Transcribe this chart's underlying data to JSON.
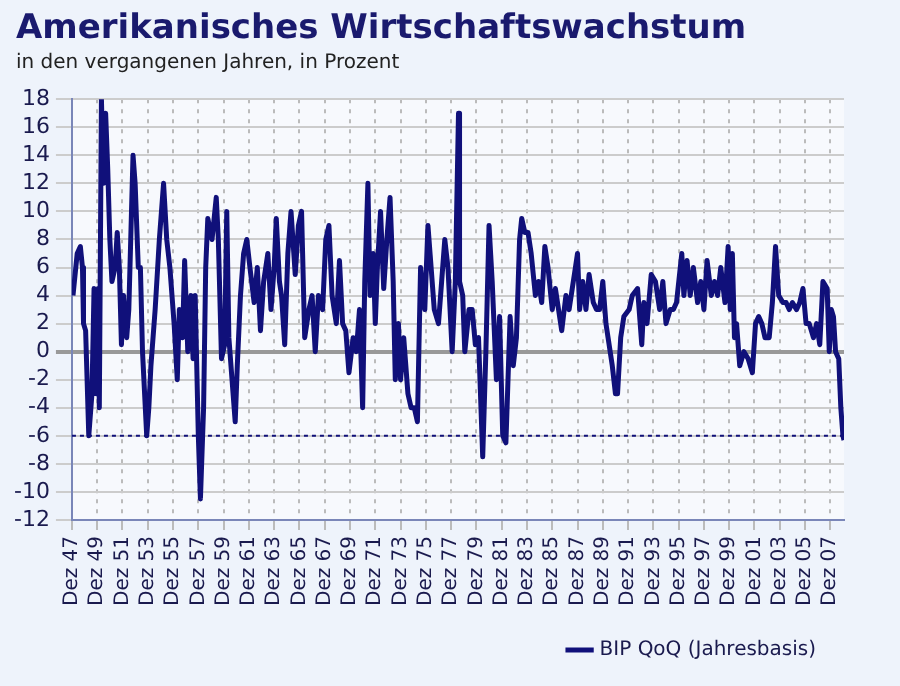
{
  "chart_data": {
    "type": "line",
    "title": "Amerikanisches Wirtschaftswachstum",
    "subtitle": "in den vergangenen Jahren, in Prozent",
    "x": [
      "1948-01",
      "1948-05",
      "1948-08",
      "1948-10",
      "1948-11",
      "1949-01",
      "1949-02",
      "1949-04",
      "1949-07",
      "1949-09",
      "1949-11",
      "1950-01",
      "1950-02",
      "1950-04",
      "1950-06",
      "1950-08",
      "1950-10",
      "1950-12",
      "1951-02",
      "1951-05",
      "1951-07",
      "1951-09",
      "1951-11",
      "1952-01",
      "1952-04",
      "1952-06",
      "1952-10",
      "1952-12",
      "1953-03",
      "1953-05",
      "1953-07",
      "1953-11",
      "1954-01",
      "1954-03",
      "1954-07",
      "1954-11",
      "1955-03",
      "1955-06",
      "1955-09",
      "1956-01",
      "1956-04",
      "1956-06",
      "1956-09",
      "1956-11",
      "1957-02",
      "1957-05",
      "1957-07",
      "1957-09",
      "1957-12",
      "1958-02",
      "1958-05",
      "1958-07",
      "1958-09",
      "1959-01",
      "1959-03",
      "1959-05",
      "1959-07",
      "1959-10",
      "1960-01",
      "1960-03",
      "1960-05",
      "1960-08",
      "1960-11",
      "1961-01",
      "1961-04",
      "1961-07",
      "1961-10",
      "1962-01",
      "1962-05",
      "1962-08",
      "1962-11",
      "1963-02",
      "1963-06",
      "1963-09",
      "1963-12",
      "1964-02",
      "1964-05",
      "1964-07",
      "1964-10",
      "1965-01",
      "1965-04",
      "1965-08",
      "1965-11",
      "1966-02",
      "1966-05",
      "1966-09",
      "1966-12",
      "1967-03",
      "1967-06",
      "1967-10",
      "1968-01",
      "1968-04",
      "1968-07",
      "1968-11",
      "1969-02",
      "1969-05",
      "1969-08",
      "1969-11",
      "1970-03",
      "1970-06",
      "1970-09",
      "1970-12",
      "1971-02",
      "1971-05",
      "1971-07",
      "1971-10",
      "1971-12",
      "1972-02",
      "1972-05",
      "1972-08",
      "1972-11",
      "1973-02",
      "1973-05",
      "1973-07",
      "1973-10",
      "1973-12",
      "1974-03",
      "1974-07",
      "1974-10",
      "1975-01",
      "1975-04",
      "1975-07",
      "1975-11",
      "1976-02",
      "1976-05",
      "1976-08",
      "1976-12",
      "1977-03",
      "1977-06",
      "1977-09",
      "1978-01",
      "1978-04",
      "1978-07",
      "1978-08",
      "1978-11",
      "1979-01",
      "1979-05",
      "1979-08",
      "1979-11",
      "1980-02",
      "1980-06",
      "1980-09",
      "1980-12",
      "1981-03",
      "1981-07",
      "1981-10",
      "1982-01",
      "1982-04",
      "1982-08",
      "1982-11",
      "1983-02",
      "1983-05",
      "1983-07",
      "1983-10",
      "1984-01",
      "1984-04",
      "1984-08",
      "1984-11",
      "1985-02",
      "1985-05",
      "1985-08",
      "1985-12",
      "1986-03",
      "1986-06",
      "1986-09",
      "1987-01",
      "1987-04",
      "1987-07",
      "1987-10",
      "1987-12",
      "1988-02",
      "1988-05",
      "1988-08",
      "1988-11",
      "1989-03",
      "1989-06",
      "1989-09",
      "1989-12",
      "1990-03",
      "1990-05",
      "1990-09",
      "1990-12",
      "1991-02",
      "1991-05",
      "1991-08",
      "1992-01",
      "1992-04",
      "1992-09",
      "1993-01",
      "1993-03",
      "1993-06",
      "1993-10",
      "1994-02",
      "1994-06",
      "1994-09",
      "1994-12",
      "1995-04",
      "1995-07",
      "1995-10",
      "1996-03",
      "1996-05",
      "1996-08",
      "1996-11",
      "1997-02",
      "1997-06",
      "1997-09",
      "1997-12",
      "1998-03",
      "1998-07",
      "1998-10",
      "1999-01",
      "1999-04",
      "1999-08",
      "1999-11",
      "2000-01",
      "2000-03",
      "2000-05",
      "2000-07",
      "2000-10",
      "2001-02",
      "2001-06",
      "2001-10",
      "2002-01",
      "2002-04",
      "2002-07",
      "2002-10",
      "2003-02",
      "2003-05",
      "2003-08",
      "2003-11",
      "2004-03",
      "2004-06",
      "2004-09",
      "2004-12",
      "2005-04",
      "2005-07",
      "2005-10",
      "2006-01",
      "2006-04",
      "2006-08",
      "2006-11",
      "2007-02",
      "2007-05",
      "2007-09",
      "2007-11",
      "2008-01",
      "2008-03",
      "2008-05",
      "2008-08",
      "2008-10",
      "2008-12",
      "2009-01"
    ],
    "series": [
      {
        "name": "BIP QoQ (Jahresbasis)",
        "color": "#10107a",
        "values": [
          4,
          7,
          7.5,
          6,
          2,
          1.5,
          -1,
          -6,
          -3,
          4.5,
          -3,
          4.5,
          -4,
          18,
          12,
          17,
          13,
          8,
          5,
          6,
          8.5,
          6,
          0.5,
          4,
          1,
          3,
          14,
          12,
          6,
          6,
          0,
          -6,
          -4,
          -1,
          3,
          8,
          12,
          8,
          6,
          2,
          -2,
          3,
          1,
          6.5,
          0,
          4,
          -0.5,
          4,
          -6,
          -10.5,
          -4,
          6,
          9.5,
          8,
          9.5,
          11,
          8,
          -0.5,
          0.5,
          10,
          1,
          -2,
          -5,
          -1,
          4,
          7,
          8,
          6,
          3.5,
          6,
          1.5,
          5,
          7,
          3,
          6,
          9.5,
          5,
          4,
          0.5,
          7,
          10,
          5.5,
          9,
          10,
          1,
          3,
          4,
          0,
          4,
          3,
          8,
          9,
          4,
          2,
          6.5,
          2,
          1.5,
          -1.5,
          1,
          0,
          3,
          -4,
          5,
          12,
          4,
          7,
          2,
          6,
          10,
          4.5,
          8,
          11,
          5,
          -2,
          2,
          -2,
          1,
          -3,
          -4,
          -4,
          -5,
          6,
          3,
          9,
          6,
          3,
          2,
          5,
          8,
          6,
          0,
          5,
          17,
          5,
          4,
          0,
          3,
          3,
          0.5,
          1,
          -7.5,
          0,
          9,
          5,
          -2,
          2.5,
          -6,
          -6.5,
          2.5,
          -1,
          1,
          8,
          9.5,
          8.5,
          8.5,
          7,
          4,
          5,
          3.5,
          7.5,
          6,
          3,
          4.5,
          3,
          1.5,
          4,
          3,
          4.5,
          6,
          7,
          3,
          5,
          3,
          5.5,
          3.5,
          3,
          3,
          5,
          2,
          1,
          -1,
          -3,
          -3,
          1,
          2.5,
          3,
          4,
          4.5,
          0.5,
          3.5,
          2,
          5.5,
          5,
          3,
          5,
          2,
          3,
          3,
          3.5,
          7,
          4,
          6.5,
          4,
          6,
          3.5,
          5,
          3,
          6.5,
          4,
          5,
          4,
          6,
          3.5,
          7.5,
          3,
          7,
          1,
          2,
          -1,
          0,
          -0.5,
          -1.5,
          2,
          2.5,
          2,
          1,
          1,
          3.5,
          7.5,
          4,
          3.5,
          3.5,
          3,
          3.5,
          3,
          3.5,
          4.5,
          2,
          2,
          1,
          2,
          0.5,
          5,
          4.5,
          0,
          3,
          2.5,
          0,
          -0.5,
          -4,
          -6,
          -6.3
        ]
      }
    ],
    "xlim": [
      "1947-12",
      "2009-01"
    ],
    "xticks": [
      {
        "value": "1947-12",
        "label": "Dez 47"
      },
      {
        "value": "1949-12",
        "label": "Dez 49"
      },
      {
        "value": "1951-12",
        "label": "Dez 51"
      },
      {
        "value": "1953-12",
        "label": "Dez 53"
      },
      {
        "value": "1955-12",
        "label": "Dez 55"
      },
      {
        "value": "1957-12",
        "label": "Dez 57"
      },
      {
        "value": "1959-12",
        "label": "Dez 59"
      },
      {
        "value": "1961-12",
        "label": "Dez 61"
      },
      {
        "value": "1963-12",
        "label": "Dez 63"
      },
      {
        "value": "1965-12",
        "label": "Dez 65"
      },
      {
        "value": "1967-12",
        "label": "Dez 67"
      },
      {
        "value": "1969-12",
        "label": "Dez 69"
      },
      {
        "value": "1971-12",
        "label": "Dez 71"
      },
      {
        "value": "1973-12",
        "label": "Dez 73"
      },
      {
        "value": "1975-12",
        "label": "Dez 75"
      },
      {
        "value": "1977-12",
        "label": "Dez 77"
      },
      {
        "value": "1979-12",
        "label": "Dez 79"
      },
      {
        "value": "1981-12",
        "label": "Dez 81"
      },
      {
        "value": "1983-12",
        "label": "Dez 83"
      },
      {
        "value": "1985-12",
        "label": "Dez 85"
      },
      {
        "value": "1987-12",
        "label": "Dez 87"
      },
      {
        "value": "1989-12",
        "label": "Dez 89"
      },
      {
        "value": "1991-12",
        "label": "Dez 91"
      },
      {
        "value": "1993-12",
        "label": "Dez 93"
      },
      {
        "value": "1995-12",
        "label": "Dez 95"
      },
      {
        "value": "1997-12",
        "label": "Dez 97"
      },
      {
        "value": "1999-12",
        "label": "Dez 99"
      },
      {
        "value": "2001-12",
        "label": "Dez 01"
      },
      {
        "value": "2003-12",
        "label": "Dez 03"
      },
      {
        "value": "2005-12",
        "label": "Dez 05"
      },
      {
        "value": "2007-12",
        "label": "Dez 07"
      }
    ],
    "ylim": [
      -12,
      18
    ],
    "yticks": [
      -12,
      -10,
      -8,
      -6,
      -4,
      -2,
      0,
      2,
      4,
      6,
      8,
      10,
      12,
      14,
      16,
      18
    ],
    "ref_lines": [
      {
        "axis": "y",
        "value": -6,
        "color": "#10107a",
        "line_style": "dotted"
      }
    ],
    "grid": true,
    "legend": "bottom right",
    "marker": "none",
    "line_style": "solid"
  }
}
